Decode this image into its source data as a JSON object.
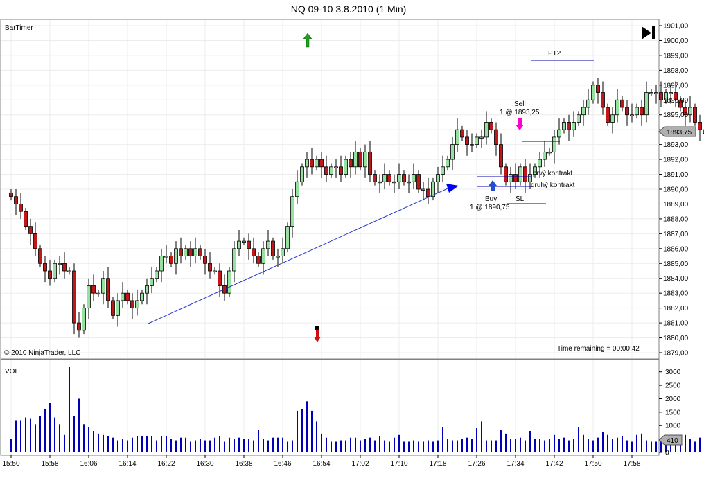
{
  "title": "NQ 09-10  3.8.2010 (1 Min)",
  "indicator_label": "BarTimer",
  "copyright": "© 2010 NinjaTrader, LLC",
  "time_remaining": "Time remaining = 00:00:42",
  "volume_label": "VOL",
  "colors": {
    "up_candle": "#98e0a0",
    "down_candle": "#c01818",
    "volume_bar": "#0000bb",
    "trendline": "#2233cc",
    "arrow_up": "#20a020",
    "arrow_down": "#cc1010",
    "buy_marker": "#2050d0",
    "sell_marker": "#ff00cc"
  },
  "icons": {
    "skip_to_end": "skip-to-end-icon",
    "up_arrow": "green-up-arrow-icon",
    "down_arrow": "red-down-arrow-icon",
    "trend_arrowhead": "blue-triangle-icon"
  },
  "chart_data": [
    {
      "type": "candlestick",
      "instrument": "NQ 09-10",
      "interval": "1 Min",
      "date": "3.8.2010",
      "ylim": [
        1879.0,
        1901.0
      ],
      "y_ticks": [
        "1901,00",
        "1900,00",
        "1899,00",
        "1898,00",
        "1897,00",
        "1896,00",
        "1895,00",
        "1894,00",
        "1893,00",
        "1892,00",
        "1891,00",
        "1890,00",
        "1889,00",
        "1888,00",
        "1887,00",
        "1886,00",
        "1885,00",
        "1884,00",
        "1883,00",
        "1882,00",
        "1881,00",
        "1880,00",
        "1879,00"
      ],
      "x_ticks": [
        "15:50",
        "15:58",
        "16:06",
        "16:14",
        "16:22",
        "16:30",
        "16:38",
        "16:46",
        "16:54",
        "17:02",
        "17:10",
        "17:18",
        "17:26",
        "17:34",
        "17:42",
        "17:50",
        "17:58"
      ],
      "grid": true,
      "last_price_label": "1893,75",
      "close": [
        1889.5,
        1889.0,
        1888.5,
        1887.5,
        1887.0,
        1886.0,
        1885.0,
        1884.5,
        1884.0,
        1885.0,
        1885.0,
        1884.5,
        1884.5,
        1881.0,
        1880.5,
        1882.0,
        1883.5,
        1883.0,
        1883.0,
        1884.0,
        1882.5,
        1881.5,
        1882.5,
        1883.0,
        1882.5,
        1882.0,
        1882.5,
        1883.0,
        1883.5,
        1884.0,
        1884.5,
        1885.5,
        1885.5,
        1885.0,
        1886.0,
        1885.5,
        1886.0,
        1885.5,
        1886.0,
        1885.5,
        1885.0,
        1884.5,
        1884.5,
        1883.5,
        1883.0,
        1884.5,
        1886.0,
        1886.5,
        1886.5,
        1886.0,
        1885.5,
        1885.0,
        1886.0,
        1886.5,
        1885.5,
        1885.5,
        1886.0,
        1887.5,
        1889.5,
        1890.5,
        1891.5,
        1892.0,
        1891.5,
        1892.0,
        1891.5,
        1891.0,
        1891.5,
        1891.5,
        1891.0,
        1892.0,
        1891.5,
        1892.5,
        1891.5,
        1892.5,
        1891.0,
        1890.5,
        1890.5,
        1891.0,
        1890.5,
        1890.5,
        1891.0,
        1890.5,
        1890.5,
        1891.0,
        1890.0,
        1890.0,
        1889.5,
        1890.5,
        1891.0,
        1891.5,
        1892.0,
        1893.0,
        1894.0,
        1893.5,
        1893.0,
        1893.0,
        1893.5,
        1893.5,
        1894.5,
        1894.0,
        1893.0,
        1891.5,
        1890.5,
        1891.0,
        1890.5,
        1891.5,
        1890.5,
        1891.0,
        1891.5,
        1892.0,
        1892.5,
        1892.5,
        1893.5,
        1894.0,
        1894.5,
        1894.0,
        1894.5,
        1895.0,
        1895.5,
        1896.0,
        1897.0,
        1896.5,
        1895.5,
        1894.5,
        1895.0,
        1896.0,
        1895.5,
        1895.0,
        1895.0,
        1895.5,
        1895.0,
        1896.5,
        1896.5,
        1896.5,
        1896.0,
        1896.5,
        1896.5,
        1896.0,
        1895.5,
        1895.0,
        1895.5,
        1894.5,
        1894.0,
        1893.75
      ],
      "series_volume": {
        "name": "VOL",
        "ylim": [
          0,
          3250
        ],
        "y_ticks": [
          "3000",
          "2500",
          "2000",
          "1500",
          "1000",
          "500",
          "0"
        ],
        "last_value_label": "410",
        "values": [
          500,
          1200,
          1200,
          1300,
          1250,
          1050,
          1350,
          1600,
          1850,
          1300,
          1050,
          650,
          3200,
          1350,
          2000,
          1050,
          950,
          800,
          700,
          650,
          600,
          550,
          450,
          500,
          450,
          550,
          600,
          600,
          600,
          600,
          450,
          600,
          600,
          500,
          450,
          550,
          550,
          400,
          450,
          500,
          450,
          450,
          550,
          600,
          400,
          550,
          500,
          550,
          500,
          500,
          450,
          850,
          500,
          450,
          550,
          550,
          550,
          400,
          450,
          1550,
          1600,
          1900,
          1550,
          1150,
          700,
          550,
          400,
          400,
          450,
          450,
          550,
          550,
          450,
          500,
          550,
          450,
          600,
          450,
          400,
          550,
          650,
          400,
          400,
          450,
          400,
          400,
          450,
          400,
          450,
          950,
          500,
          450,
          450,
          500,
          550,
          500,
          900,
          1150,
          450,
          450,
          450,
          850,
          700,
          500,
          500,
          550,
          450,
          800,
          500,
          500,
          450,
          500,
          650,
          500,
          550,
          450,
          500,
          950,
          650,
          500,
          450,
          550,
          750,
          650,
          500,
          550,
          600,
          450,
          400,
          650,
          700,
          450,
          400,
          400,
          450,
          400,
          500,
          350,
          350,
          650,
          500,
          400,
          550,
          650,
          410
        ]
      }
    }
  ],
  "annotations": {
    "pt2": "PT2",
    "sell_text": "Sell",
    "sell_detail": "1 @ 1893,25",
    "buy_text": "Buy",
    "buy_detail": "1 @ 1890,75",
    "sl": "SL",
    "first_contract": "prvý kontrakt",
    "second_contract": "druhý kontrakt"
  }
}
